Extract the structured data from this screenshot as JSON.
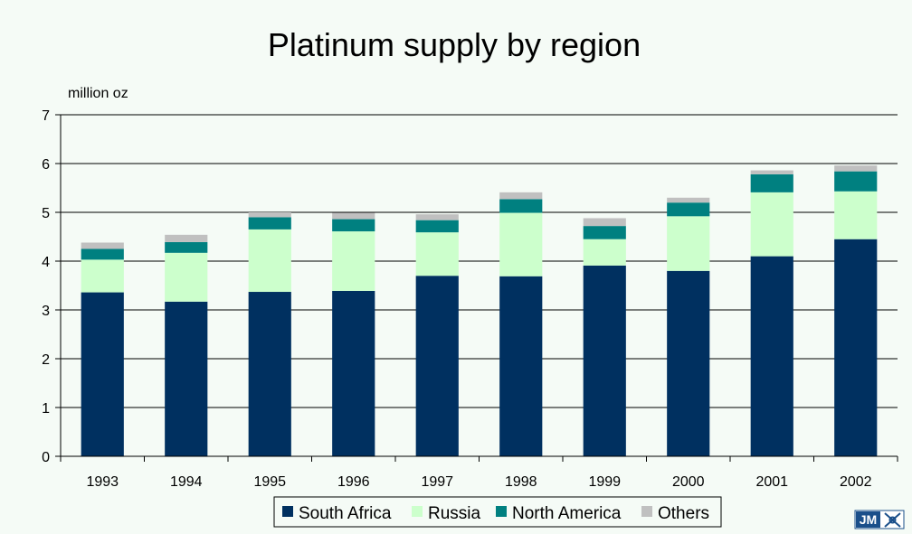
{
  "chart_data": {
    "type": "bar",
    "stacked": true,
    "title": "Platinum supply by region",
    "ylabel": "million oz",
    "xlabel": "",
    "ylim": [
      0,
      7
    ],
    "yticks": [
      "0",
      "1",
      "2",
      "3",
      "4",
      "5",
      "6",
      "7"
    ],
    "grid": true,
    "legend_position": "bottom",
    "categories": [
      "1993",
      "1994",
      "1995",
      "1996",
      "1997",
      "1998",
      "1999",
      "2000",
      "2001",
      "2002"
    ],
    "series": [
      {
        "name": "South Africa",
        "color": "#003060",
        "values": [
          3.36,
          3.17,
          3.37,
          3.39,
          3.7,
          3.69,
          3.91,
          3.8,
          4.1,
          4.45
        ]
      },
      {
        "name": "Russia",
        "color": "#ccffcc",
        "values": [
          0.67,
          1.0,
          1.28,
          1.22,
          0.89,
          1.3,
          0.54,
          1.12,
          1.31,
          0.98
        ]
      },
      {
        "name": "North America",
        "color": "#008080",
        "values": [
          0.22,
          0.22,
          0.25,
          0.25,
          0.25,
          0.28,
          0.27,
          0.28,
          0.37,
          0.41
        ]
      },
      {
        "name": "Others",
        "color": "#c0c0c0",
        "values": [
          0.13,
          0.15,
          0.1,
          0.13,
          0.12,
          0.14,
          0.16,
          0.1,
          0.08,
          0.12
        ]
      }
    ]
  },
  "logo": {
    "text": "JM",
    "icon": "jm-crossed-hammers-icon"
  }
}
